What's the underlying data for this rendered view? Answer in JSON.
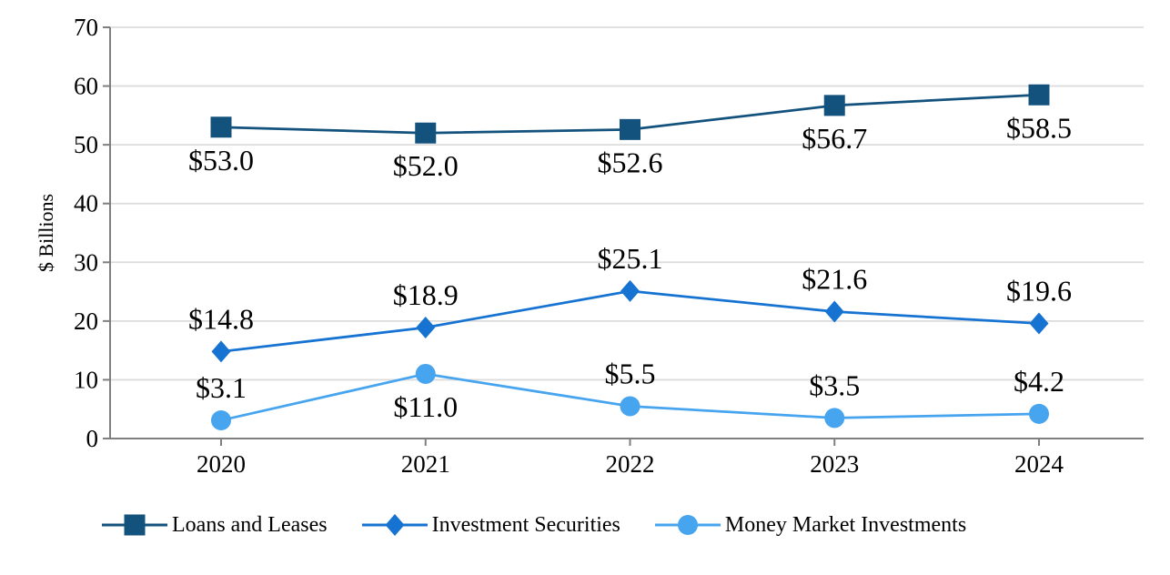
{
  "chart_data": {
    "type": "line",
    "title": "",
    "xlabel": "",
    "ylabel": "$ Billions",
    "categories": [
      "2020",
      "2021",
      "2022",
      "2023",
      "2024"
    ],
    "ylim": [
      0,
      70
    ],
    "yticks": [
      0,
      10,
      20,
      30,
      40,
      50,
      60,
      70
    ],
    "grid": true,
    "legend_position": "bottom",
    "axis_color": "#7F7F7F",
    "grid_color": "#DCDCDC",
    "text_color": "#000000",
    "series": [
      {
        "name": "Loans and Leases",
        "marker": "square",
        "color": "#14527E",
        "values": [
          53.0,
          52.0,
          52.6,
          56.7,
          58.5
        ],
        "labels": [
          "$53.0",
          "$52.0",
          "$52.6",
          "$56.7",
          "$58.5"
        ],
        "label_side": [
          "below",
          "below",
          "below",
          "below",
          "below"
        ]
      },
      {
        "name": "Investment Securities",
        "marker": "diamond",
        "color": "#1673D2",
        "values": [
          14.8,
          18.9,
          25.1,
          21.6,
          19.6
        ],
        "labels": [
          "$14.8",
          "$18.9",
          "$25.1",
          "$21.6",
          "$19.6"
        ],
        "label_side": [
          "above",
          "above",
          "above",
          "above",
          "above"
        ]
      },
      {
        "name": "Money Market Investments",
        "marker": "circle",
        "color": "#47A4EF",
        "values": [
          3.1,
          11.0,
          5.5,
          3.5,
          4.2
        ],
        "labels": [
          "$3.1",
          "$11.0",
          "$5.5",
          "$3.5",
          "$4.2"
        ],
        "label_side": [
          "above",
          "below",
          "above",
          "above",
          "above"
        ]
      }
    ]
  }
}
